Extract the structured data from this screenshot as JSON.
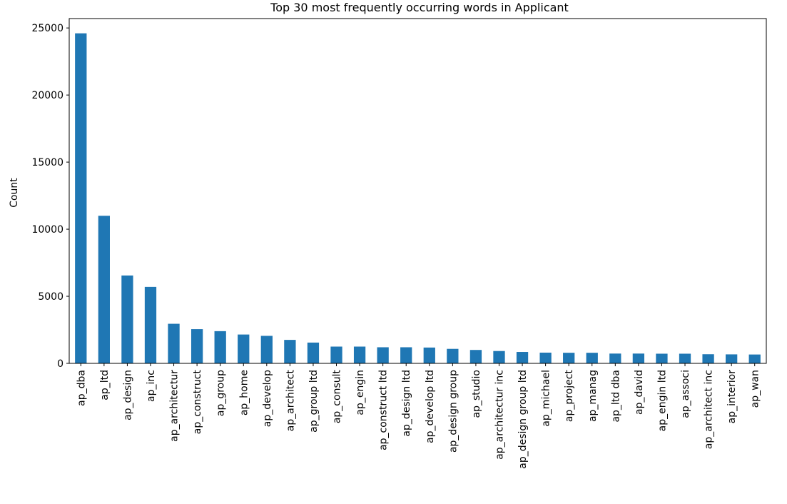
{
  "chart_data": {
    "type": "bar",
    "title": "Top 30 most frequently occurring words in Applicant",
    "xlabel": "",
    "ylabel": "Count",
    "ylim": [
      0,
      25700
    ],
    "yticks": [
      0,
      5000,
      10000,
      15000,
      20000,
      25000
    ],
    "bar_color": "#1f77b4",
    "grid": false,
    "categories": [
      "ap_dba",
      "ap_ltd",
      "ap_design",
      "ap_inc",
      "ap_architectur",
      "ap_construct",
      "ap_group",
      "ap_home",
      "ap_develop",
      "ap_architect",
      "ap_group ltd",
      "ap_consult",
      "ap_engin",
      "ap_construct ltd",
      "ap_design ltd",
      "ap_develop ltd",
      "ap_design group",
      "ap_studio",
      "ap_architectur inc",
      "ap_design group ltd",
      "ap_michael",
      "ap_project",
      "ap_manag",
      "ap_ltd dba",
      "ap_david",
      "ap_engin ltd",
      "ap_associ",
      "ap_architect inc",
      "ap_interior",
      "ap_wan"
    ],
    "values": [
      24600,
      11000,
      6550,
      5700,
      2950,
      2550,
      2400,
      2150,
      2050,
      1750,
      1550,
      1250,
      1250,
      1200,
      1200,
      1180,
      1080,
      1000,
      920,
      850,
      800,
      790,
      790,
      730,
      730,
      720,
      720,
      680,
      670,
      660
    ]
  }
}
